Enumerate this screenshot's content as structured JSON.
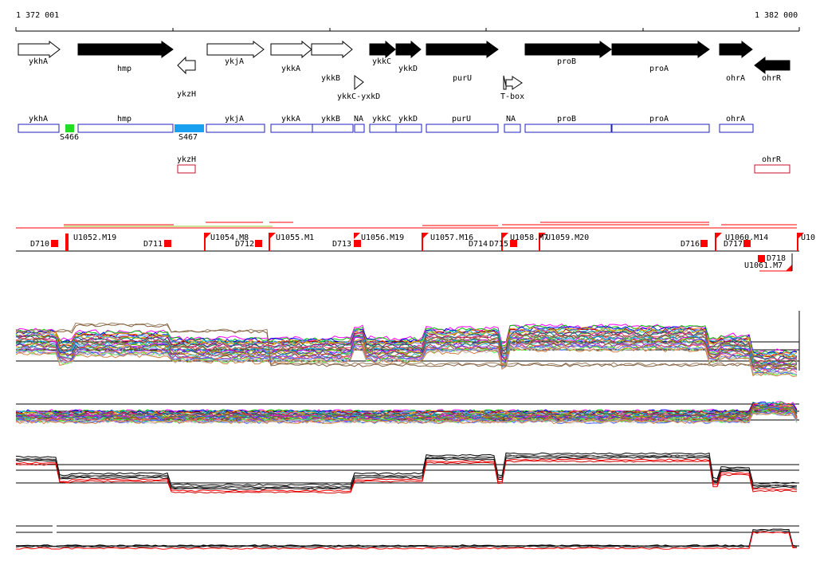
{
  "coords": {
    "start": "1 372 001",
    "end": "1 382 000"
  },
  "genes": [
    {
      "name": "ykhA",
      "filled": false,
      "dir": "R"
    },
    {
      "name": "hmp",
      "filled": true,
      "dir": "R"
    },
    {
      "name": "ykzH",
      "filled": false,
      "dir": "L"
    },
    {
      "name": "ykjA",
      "filled": false,
      "dir": "R"
    },
    {
      "name": "ykkA",
      "filled": false,
      "dir": "R"
    },
    {
      "name": "ykkB",
      "filled": false,
      "dir": "R"
    },
    {
      "name": "ykkC",
      "filled": true,
      "dir": "R"
    },
    {
      "name": "ykkD",
      "filled": true,
      "dir": "R"
    },
    {
      "name": "purU",
      "filled": true,
      "dir": "R"
    },
    {
      "name": "proB",
      "filled": true,
      "dir": "R"
    },
    {
      "name": "proA",
      "filled": true,
      "dir": "R"
    },
    {
      "name": "ohrA",
      "filled": true,
      "dir": "R"
    },
    {
      "name": "ohrR",
      "filled": true,
      "dir": "L"
    }
  ],
  "terminators": [
    {
      "name": "ykkC-yxkD",
      "type": "triangle"
    },
    {
      "name": "T-box",
      "type": "flag"
    }
  ],
  "features": [
    {
      "name": "ykhA"
    },
    {
      "name": "S466"
    },
    {
      "name": "hmp"
    },
    {
      "name": "S467"
    },
    {
      "name": "ykjA"
    },
    {
      "name": "ykkA"
    },
    {
      "name": "ykkB"
    },
    {
      "name": "NA"
    },
    {
      "name": "ykkC"
    },
    {
      "name": "ykkD"
    },
    {
      "name": "purU"
    },
    {
      "name": "NA"
    },
    {
      "name": "proB"
    },
    {
      "name": "proA"
    },
    {
      "name": "ohrA"
    }
  ],
  "antisense": [
    {
      "name": "ykzH"
    },
    {
      "name": "ohrR"
    }
  ],
  "segments": [
    {
      "name": "D710"
    },
    {
      "name": "U1052.M19"
    },
    {
      "name": "D711"
    },
    {
      "name": "U1054.M8"
    },
    {
      "name": "D712"
    },
    {
      "name": "U1055.M1"
    },
    {
      "name": "D713"
    },
    {
      "name": "U1056.M19"
    },
    {
      "name": "U1057.M16"
    },
    {
      "name": "D714"
    },
    {
      "name": "D715"
    },
    {
      "name": "U1058.M7"
    },
    {
      "name": "U1059.M20"
    },
    {
      "name": "D716"
    },
    {
      "name": "U1060.M14"
    },
    {
      "name": "D717"
    },
    {
      "name": "D718"
    },
    {
      "name": "U1061.M7"
    },
    {
      "name": "U10"
    }
  ],
  "colors": {
    "gene_fill": "#000000",
    "feature_box": "#1f1fbf",
    "antisense_box": "#c8102e",
    "s466": "#22dd22",
    "s467": "#1aa0f0",
    "segment_mark": "#ff0000"
  }
}
